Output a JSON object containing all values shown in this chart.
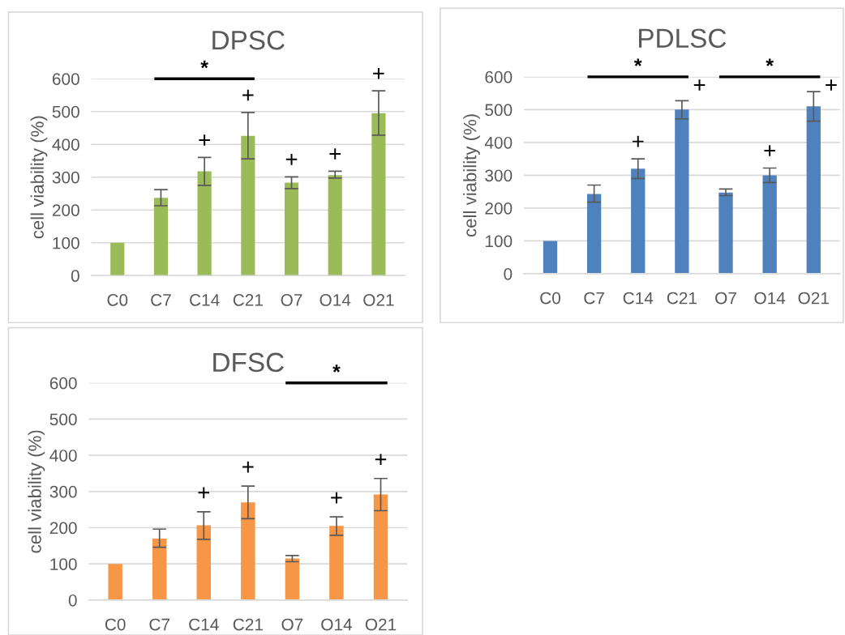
{
  "chart_data": [
    {
      "type": "bar",
      "title": "DPSC",
      "ylabel": "cell viability (%)",
      "categories": [
        "C0",
        "C7",
        "C14",
        "C21",
        "O7",
        "O14",
        "O21"
      ],
      "color": "#9bbb59",
      "values": [
        100,
        237,
        318,
        426,
        283,
        306,
        495
      ],
      "errors": [
        null,
        [
          213,
          262
        ],
        [
          275,
          360
        ],
        [
          356,
          497
        ],
        [
          265,
          301
        ],
        [
          297,
          318
        ],
        [
          428,
          563
        ]
      ],
      "value_labels": [
        null,
        null,
        "+",
        "+",
        "+",
        "+",
        "+"
      ],
      "ylim": [
        0,
        600
      ],
      "yticks": [
        0,
        100,
        200,
        300,
        400,
        500,
        600
      ],
      "grid": "y",
      "annotations": [
        "*"
      ]
    },
    {
      "type": "bar",
      "title": "PDLSC",
      "ylabel": "cell viability (%)",
      "categories": [
        "C0",
        "C7",
        "C14",
        "C21",
        "O7",
        "O14",
        "O21"
      ],
      "color": "#4f81bd",
      "values": [
        100,
        243,
        320,
        500,
        247,
        300,
        510
      ],
      "errors": [
        null,
        [
          218,
          270
        ],
        [
          290,
          350
        ],
        [
          472,
          527
        ],
        [
          238,
          258
        ],
        [
          278,
          322
        ],
        [
          465,
          555
        ]
      ],
      "value_labels": [
        null,
        null,
        "+",
        "+",
        null,
        "+",
        "+"
      ],
      "ylim": [
        0,
        600
      ],
      "yticks": [
        0,
        100,
        200,
        300,
        400,
        500,
        600
      ],
      "grid": "y",
      "annotations": [
        "*",
        "*"
      ]
    },
    {
      "type": "bar",
      "title": "DFSC",
      "ylabel": "cell viability (%)",
      "categories": [
        "C0",
        "C7",
        "C14",
        "C21",
        "O7",
        "O14",
        "O21"
      ],
      "color": "#f79646",
      "values": [
        100,
        170,
        207,
        270,
        115,
        205,
        292
      ],
      "errors": [
        null,
        [
          146,
          196
        ],
        [
          168,
          244
        ],
        [
          225,
          315
        ],
        [
          106,
          123
        ],
        [
          179,
          230
        ],
        [
          247,
          336
        ]
      ],
      "value_labels": [
        null,
        null,
        "+",
        "+",
        null,
        "+",
        "+"
      ],
      "ylim": [
        0,
        600
      ],
      "yticks": [
        0,
        100,
        200,
        300,
        400,
        500,
        600
      ],
      "grid": "y",
      "annotations": [
        "*"
      ]
    }
  ]
}
